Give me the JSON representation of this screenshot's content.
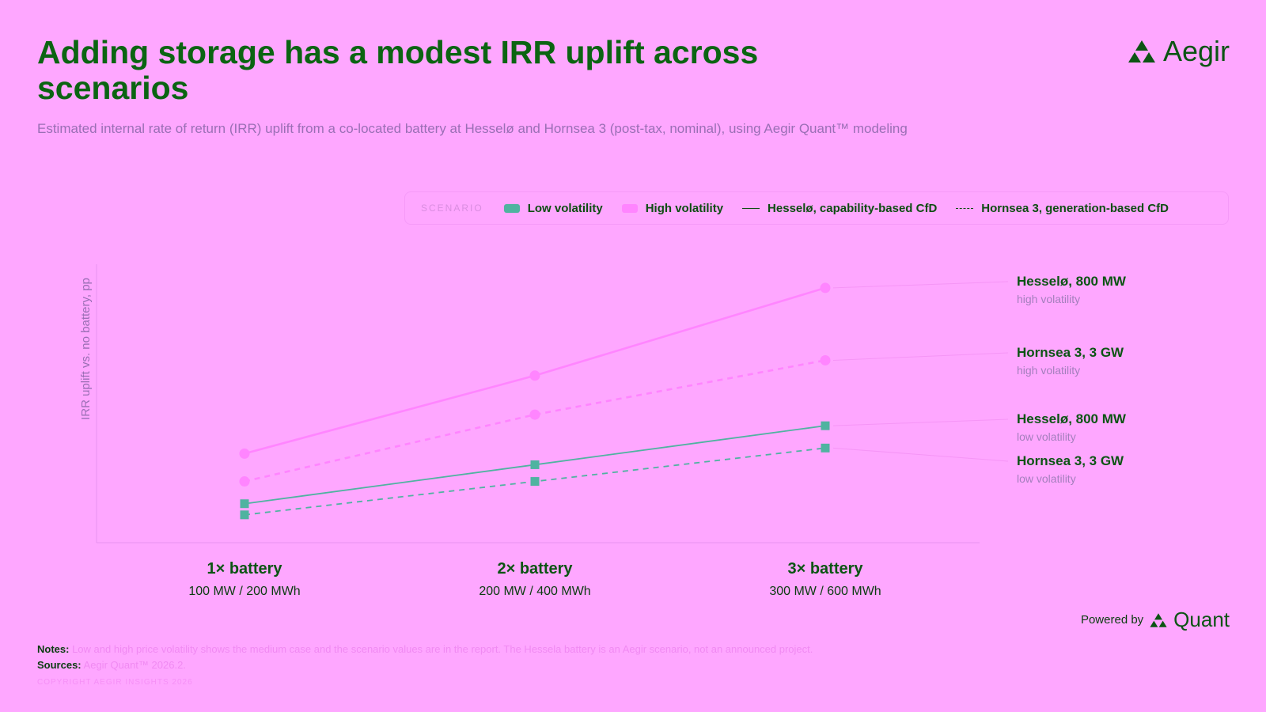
{
  "header": {
    "title": "Adding storage has a modest IRR uplift across scenarios",
    "subtitle": "Estimated internal rate of return (IRR) uplift from a co-located battery at Hesselø and Hornsea 3 (post-tax, nominal), using Aegir Quant™ modeling",
    "logo_text": "Aegir"
  },
  "legend": {
    "heading": "SCENARIO",
    "items": [
      {
        "label": "Low volatility",
        "kind": "swatch",
        "color": "#4fb3a0"
      },
      {
        "label": "High volatility",
        "kind": "swatch",
        "color": "#ff85ff"
      },
      {
        "label": "Hesselø, capability-based CfD",
        "kind": "solid"
      },
      {
        "label": "Hornsea 3, generation-based CfD",
        "kind": "dashed"
      }
    ]
  },
  "chart_data": {
    "type": "line",
    "ylabel": "IRR uplift vs. no battery, pp",
    "categories": [
      "1× battery",
      "2× battery",
      "3× battery"
    ],
    "category_sublabels": [
      "100 MW / 200 MWh",
      "200 MW / 400 MWh",
      "300 MW / 600 MWh"
    ],
    "ylim": [
      0,
      1.0
    ],
    "grid": false,
    "colors": {
      "low": "#4fb3a0",
      "high": "#ff85ff"
    },
    "series": [
      {
        "name": "Hesselø, 800 MW",
        "sublabel": "high volatility",
        "volatility": "high",
        "style": "solid",
        "values": [
          0.32,
          0.6,
          0.915
        ]
      },
      {
        "name": "Hornsea 3, 3 GW",
        "sublabel": "high volatility",
        "volatility": "high",
        "style": "dashed",
        "values": [
          0.22,
          0.46,
          0.655
        ]
      },
      {
        "name": "Hesselø, 800 MW",
        "sublabel": "low volatility",
        "volatility": "low",
        "style": "solid",
        "values": [
          0.14,
          0.28,
          0.42
        ]
      },
      {
        "name": "Hornsea 3, 3 GW",
        "sublabel": "low volatility",
        "volatility": "low",
        "style": "dashed",
        "values": [
          0.1,
          0.22,
          0.34
        ]
      }
    ]
  },
  "branding": {
    "powered_by": "Powered by",
    "product": "Quant"
  },
  "footer": {
    "notes_label": "Notes:",
    "notes_text": "Low and high price volatility shows the medium case and the scenario values are in the report. The Hessela battery is an Aegir scenario, not an announced project.",
    "sources_label": "Sources:",
    "sources_text": "Aegir Quant™ 2026.2.",
    "copyright": "COPYRIGHT AEGIR INSIGHTS 2026"
  }
}
